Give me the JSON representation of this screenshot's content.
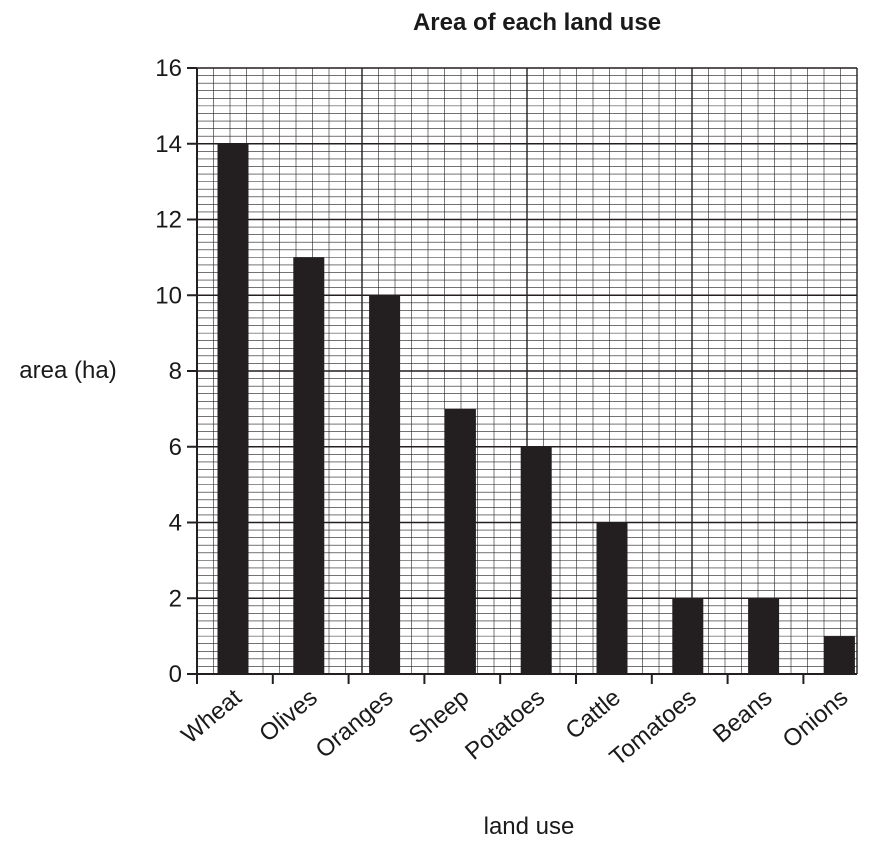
{
  "chart_data": {
    "type": "bar",
    "title": "Area of each land use",
    "xlabel": "land use",
    "ylabel": "area (ha)",
    "categories": [
      "Wheat",
      "Olives",
      "Oranges",
      "Sheep",
      "Potatoes",
      "Cattle",
      "Tomatoes",
      "Beans",
      "Onions"
    ],
    "values": [
      14,
      11,
      10,
      7,
      6,
      4,
      2,
      2,
      1
    ],
    "ylim": [
      0,
      16
    ],
    "yticks": [
      "0",
      "2",
      "4",
      "6",
      "8",
      "10",
      "12",
      "14",
      "16"
    ],
    "grid": true,
    "bar_color": "#231f20"
  }
}
